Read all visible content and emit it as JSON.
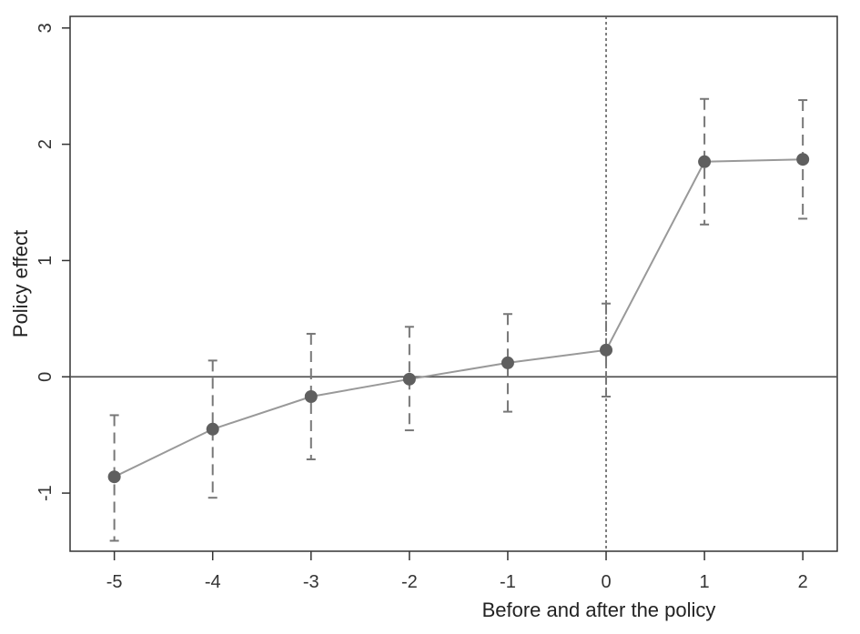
{
  "chart_data": {
    "type": "line",
    "title": "",
    "xlabel": "Before and after the policy",
    "ylabel": "Policy effect",
    "x": [
      -5,
      -4,
      -3,
      -2,
      -1,
      0,
      1,
      2
    ],
    "xlim": [
      -5.45,
      2.35
    ],
    "ylim": [
      -1.5,
      3.1
    ],
    "xticks": [
      "-5",
      "-4",
      "-3",
      "-2",
      "-1",
      "0",
      "1",
      "2"
    ],
    "yticks": [
      "-1",
      "0",
      "1",
      "2",
      "3"
    ],
    "series": [
      {
        "values": [
          -0.86,
          -0.45,
          -0.17,
          -0.02,
          0.12,
          0.23,
          1.85,
          1.87
        ],
        "ci_lower": [
          -1.41,
          -1.04,
          -0.71,
          -0.46,
          -0.3,
          -0.17,
          1.31,
          1.36
        ],
        "ci_upper": [
          -0.33,
          0.14,
          0.37,
          0.43,
          0.54,
          0.63,
          2.39,
          2.38
        ]
      }
    ],
    "reference_lines": {
      "horizontal_y": 0,
      "vertical_x": 0
    },
    "grid": false,
    "legend": "none",
    "colors": {
      "line": "#999999",
      "point": "#5f5f5f",
      "ci": "#777777",
      "zero_line": "#555555",
      "axis": "#333333"
    }
  }
}
